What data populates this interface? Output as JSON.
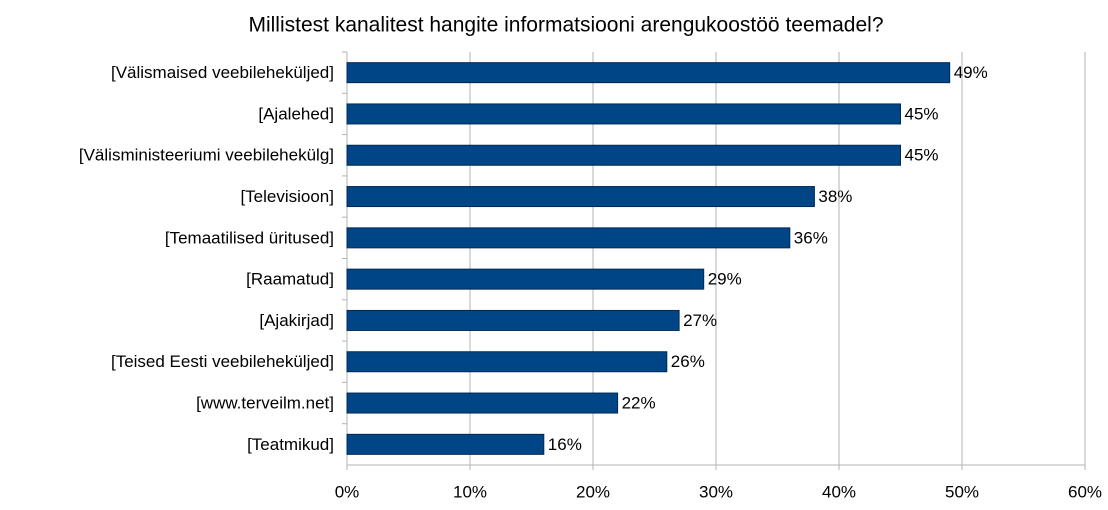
{
  "chart_data": {
    "type": "hbar",
    "title": "Millistest kanalitest hangite informatsiooni arengukoostöö teemadel?",
    "categories": [
      "[Välismaised veebileheküljed]",
      "[Ajalehed]",
      "[Välisministeeriumi veebilehekülg]",
      "[Televisioon]",
      "[Temaatilised üritused]",
      "[Raamatud]",
      "[Ajakirjad]",
      "[Teised Eesti veebileheküljed]",
      "[www.terveilm.net]",
      "[Teatmikud]"
    ],
    "values": [
      49,
      45,
      45,
      38,
      36,
      29,
      27,
      26,
      22,
      16
    ],
    "value_labels": [
      "49%",
      "45%",
      "45%",
      "38%",
      "36%",
      "29%",
      "27%",
      "26%",
      "22%",
      "16%"
    ],
    "color": "#004586",
    "xlim": [
      0,
      60
    ],
    "xticks": [
      {
        "value": 0,
        "label": "0%"
      },
      {
        "value": 10,
        "label": "10%"
      },
      {
        "value": 20,
        "label": "20%"
      },
      {
        "value": 30,
        "label": "30%"
      },
      {
        "value": 40,
        "label": "40%"
      },
      {
        "value": 50,
        "label": "50%"
      },
      {
        "value": 60,
        "label": "60%"
      }
    ],
    "grid": true
  }
}
